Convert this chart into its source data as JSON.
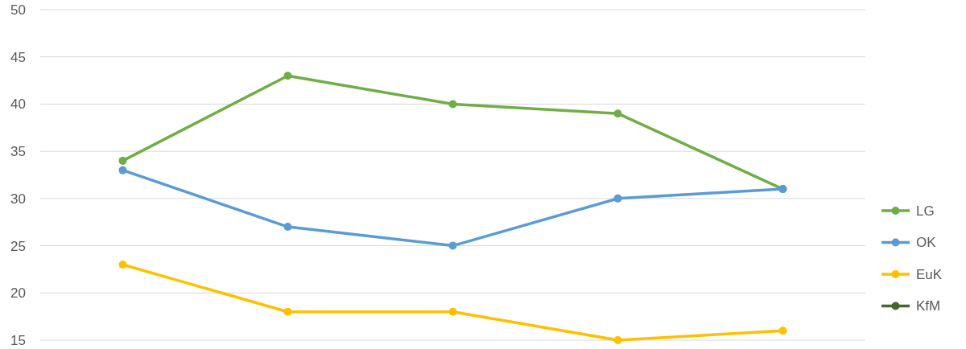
{
  "chart_data": {
    "type": "line",
    "categories": [
      null,
      null,
      null,
      null,
      null
    ],
    "series": [
      {
        "name": "LG",
        "color": "#70ad47",
        "values": [
          34,
          43,
          40,
          39,
          31
        ]
      },
      {
        "name": "OK",
        "color": "#5b9bd5",
        "values": [
          33,
          27,
          25,
          30,
          31
        ]
      },
      {
        "name": "EuK",
        "color": "#ffc000",
        "values": [
          23,
          18,
          18,
          15,
          16
        ]
      },
      {
        "name": "KfM",
        "color": "#43682b",
        "values": [
          null,
          null,
          null,
          null,
          null
        ]
      }
    ],
    "ylim": [
      15,
      50
    ],
    "yticks": [
      15,
      20,
      25,
      30,
      35,
      40,
      45,
      50
    ],
    "grid": "y",
    "legend": "right",
    "marker": "circle",
    "line_style": "solid"
  }
}
